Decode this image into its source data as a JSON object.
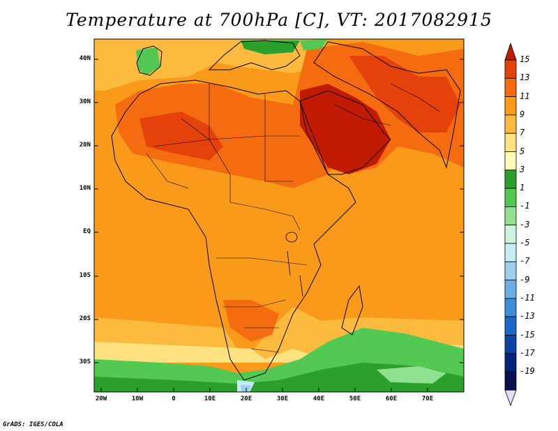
{
  "title": "Temperature at 700hPa [C], VT: 2017082915",
  "credit": "GrADS: IGES/COLA",
  "map": {
    "lat_labels": [
      "40N",
      "30N",
      "20N",
      "10N",
      "EQ",
      "10S",
      "20S",
      "30S"
    ],
    "lon_labels": [
      "20W",
      "10W",
      "0",
      "10E",
      "20E",
      "30E",
      "40E",
      "50E",
      "60E",
      "70E"
    ]
  },
  "colorbar": {
    "levels": [
      "15",
      "13",
      "11",
      "9",
      "7",
      "5",
      "3",
      "1",
      "-1",
      "-3",
      "-5",
      "-7",
      "-9",
      "-11",
      "-13",
      "-15",
      "-17",
      "-19"
    ],
    "colors": [
      "#c01a00",
      "#e4410b",
      "#f46c0f",
      "#f99a1b",
      "#fcbb3f",
      "#fee282",
      "#fdf9b6",
      "#2ca02c",
      "#53c953",
      "#8fe08f",
      "#cdf4df",
      "#c6ecf5",
      "#9fd0ef",
      "#6aaee6",
      "#3d8ddb",
      "#1f67c7",
      "#0b43a5",
      "#06237a",
      "#0a0f4d",
      "#e6ddf3"
    ]
  }
}
